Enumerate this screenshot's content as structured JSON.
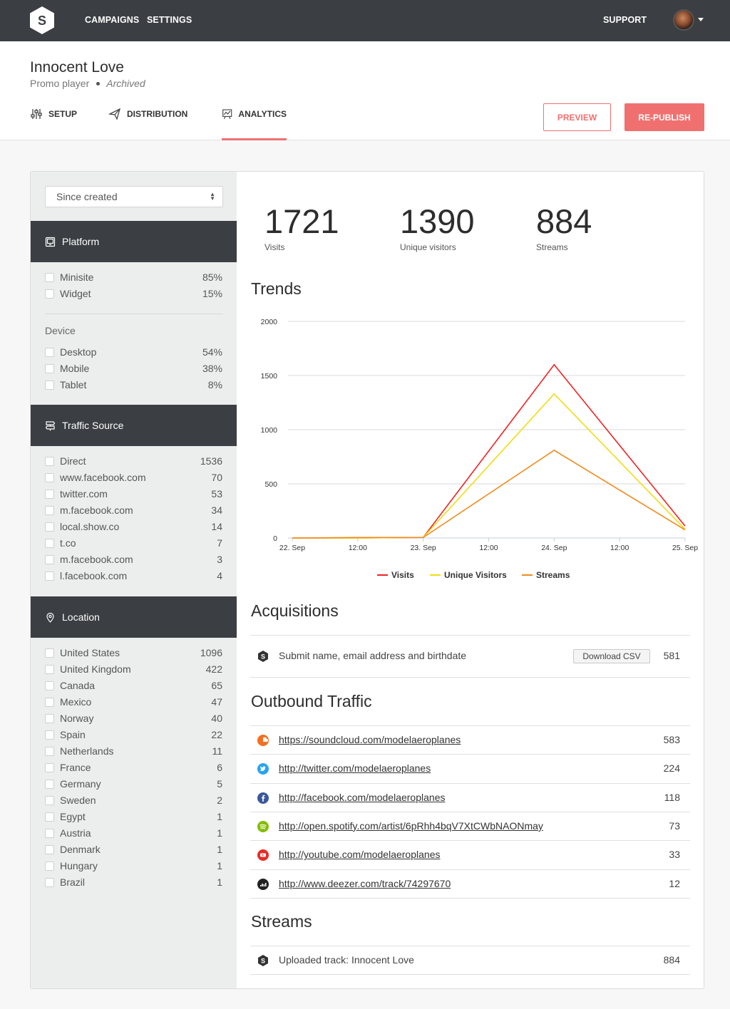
{
  "topnav": {
    "logo_letter": "S",
    "campaigns": "CAMPAIGNS",
    "settings": "SETTINGS",
    "support": "SUPPORT"
  },
  "header": {
    "title": "Innocent Love",
    "type": "Promo player",
    "status": "Archived",
    "tabs": [
      {
        "label": "SETUP",
        "icon": "sliders-icon"
      },
      {
        "label": "DISTRIBUTION",
        "icon": "paper-plane-icon"
      },
      {
        "label": "ANALYTICS",
        "icon": "chart-board-icon"
      }
    ],
    "preview_label": "PREVIEW",
    "republish_label": "RE-PUBLISH"
  },
  "filters": {
    "period": "Since created",
    "platform": {
      "title": "Platform",
      "items": [
        {
          "label": "Minisite",
          "value": "85%"
        },
        {
          "label": "Widget",
          "value": "15%"
        }
      ],
      "device_label": "Device",
      "devices": [
        {
          "label": "Desktop",
          "value": "54%"
        },
        {
          "label": "Mobile",
          "value": "38%"
        },
        {
          "label": "Tablet",
          "value": "8%"
        }
      ]
    },
    "traffic": {
      "title": "Traffic Source",
      "items": [
        {
          "label": "Direct",
          "value": "1536"
        },
        {
          "label": "www.facebook.com",
          "value": "70"
        },
        {
          "label": "twitter.com",
          "value": "53"
        },
        {
          "label": "m.facebook.com",
          "value": "34"
        },
        {
          "label": "local.show.co",
          "value": "14"
        },
        {
          "label": "t.co",
          "value": "7"
        },
        {
          "label": "m.facebook.com",
          "value": "3"
        },
        {
          "label": "l.facebook.com",
          "value": "4"
        }
      ]
    },
    "location": {
      "title": "Location",
      "items": [
        {
          "label": "United States",
          "value": "1096"
        },
        {
          "label": "United Kingdom",
          "value": "422"
        },
        {
          "label": "Canada",
          "value": "65"
        },
        {
          "label": "Mexico",
          "value": "47"
        },
        {
          "label": "Norway",
          "value": "40"
        },
        {
          "label": "Spain",
          "value": "22"
        },
        {
          "label": "Netherlands",
          "value": "11"
        },
        {
          "label": "France",
          "value": "6"
        },
        {
          "label": "Germany",
          "value": "5"
        },
        {
          "label": "Sweden",
          "value": "2"
        },
        {
          "label": "Egypt",
          "value": "1"
        },
        {
          "label": "Austria",
          "value": "1"
        },
        {
          "label": "Denmark",
          "value": "1"
        },
        {
          "label": "Hungary",
          "value": "1"
        },
        {
          "label": "Brazil",
          "value": "1"
        }
      ]
    }
  },
  "stats": [
    {
      "value": "1721",
      "label": "Visits"
    },
    {
      "value": "1390",
      "label": "Unique visitors"
    },
    {
      "value": "884",
      "label": "Streams"
    }
  ],
  "trends_title": "Trends",
  "chart_data": {
    "type": "line",
    "title": "Trends",
    "x_ticks": [
      "22. Sep",
      "12:00",
      "23. Sep",
      "12:00",
      "24. Sep",
      "12:00",
      "25. Sep"
    ],
    "y_ticks": [
      "0",
      "500",
      "1000",
      "1500",
      "2000"
    ],
    "ylim": [
      0,
      2000
    ],
    "xlim": [
      0,
      6
    ],
    "series": [
      {
        "name": "Visits",
        "color": "#ee2222",
        "x": [
          0,
          1,
          2,
          4,
          6
        ],
        "values": [
          0,
          0,
          5,
          1600,
          110
        ]
      },
      {
        "name": "Unique Visitors",
        "color": "#f2dc14",
        "x": [
          0,
          1,
          2,
          4,
          6
        ],
        "values": [
          0,
          0,
          5,
          1330,
          80
        ]
      },
      {
        "name": "Streams",
        "color": "#f08a1c",
        "x": [
          0,
          1,
          2,
          4,
          6
        ],
        "values": [
          0,
          5,
          5,
          810,
          75
        ]
      }
    ]
  },
  "acquisitions": {
    "title": "Acquisitions",
    "rows": [
      {
        "label": "Submit name, email address and birthdate",
        "button": "Download CSV",
        "value": "581",
        "icon": "show-co-icon"
      }
    ]
  },
  "outbound": {
    "title": "Outbound Traffic",
    "rows": [
      {
        "url": "https://soundcloud.com/modelaeroplanes",
        "value": "583",
        "icon": "soundcloud-icon",
        "color": "#f26f23"
      },
      {
        "url": "http://twitter.com/modelaeroplanes",
        "value": "224",
        "icon": "twitter-icon",
        "color": "#2aa3ef"
      },
      {
        "url": "http://facebook.com/modelaeroplanes",
        "value": "118",
        "icon": "facebook-icon",
        "color": "#3b5998"
      },
      {
        "url": "http://open.spotify.com/artist/6pRhh4bqV7XtCWbNAONmay",
        "value": "73",
        "icon": "spotify-icon",
        "color": "#84bd00"
      },
      {
        "url": "http://youtube.com/modelaeroplanes",
        "value": "33",
        "icon": "youtube-icon",
        "color": "#e52d27"
      },
      {
        "url": "http://www.deezer.com/track/74297670",
        "value": "12",
        "icon": "deezer-icon",
        "color": "#222222"
      }
    ]
  },
  "streams": {
    "title": "Streams",
    "rows": [
      {
        "label": "Uploaded track: Innocent Love",
        "value": "884",
        "icon": "show-co-icon"
      }
    ]
  }
}
